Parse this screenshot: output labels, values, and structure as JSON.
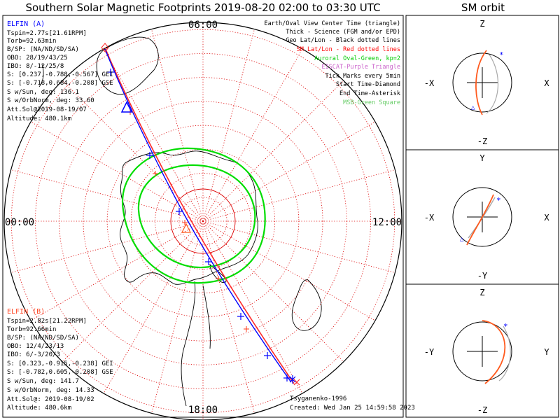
{
  "title": "Southern Solar Magnetic Footprints 2019-08-20 02:00 to 03:30 UTC",
  "orbit_title": "SM orbit",
  "clock_labels": {
    "top": "06:00",
    "left": "00:00",
    "right": "12:00",
    "bottom": "18:00"
  },
  "colors": {
    "elfin_a": "#0000ff",
    "elfin_b": "#ff0000",
    "orbit": "#ff5a1e",
    "oval": "#00dd00",
    "grid": "#dd0000"
  },
  "elfin_a": {
    "label": "ELFIN (A)",
    "lines": [
      "Tspin=2.77s[21.61RPM]",
      "Torb=92.63min",
      "B/SP: (NA/ND/SD/SA)",
      "OBO: 28/19/43/25",
      "IBO: 8/-12/25/8",
      "S: [0.237,-0.788,-0.567] GEI",
      "S: [-0.718,0.684,-0.208] GSE",
      "S w/Sun, deg: 136.1",
      "S w/OrbNorm, deg: 33.60",
      "Att.Sol@2019-08-19/07",
      "Altitude: 480.1km"
    ]
  },
  "elfin_b": {
    "label": "ELFIN (B)",
    "lines": [
      "Tspin=2.82s[21.22RPM]",
      "Torb=92.66min",
      "B/SP: (NA/ND/SD/SA)",
      "OBO: 12/4/23/13",
      "IBO: 6/-3/20/3",
      "S: [0.323,-0.915,-0.238] GEI",
      "S: [-0.782,0.605,-0.208] GSE",
      "S w/Sun, deg: 141.7",
      "S w/OrbNorm, deg: 14.33",
      "Att.Sol@: 2019-08-19/02",
      "Altitude: 480.6km"
    ]
  },
  "legend": [
    {
      "text": "Earth/Oval View Center Time (triangle)",
      "color": "#000000"
    },
    {
      "text": "Thick - Science (FGM and/or EPD)",
      "color": "#000000"
    },
    {
      "text": "Geo Lat/Lon - Black dotted lines",
      "color": "#000000"
    },
    {
      "text": "SM Lat/Lon - Red dotted lines",
      "color": "#ff0000"
    },
    {
      "text": "Auroral Oval-Green, kp=2",
      "color": "#00cc00"
    },
    {
      "text": "EISCAT-Purple Triangle",
      "color": "#cc66cc"
    },
    {
      "text": "Tick Marks every 5min",
      "color": "#000000"
    },
    {
      "text": "Start Time-Diamond",
      "color": "#000000"
    },
    {
      "text": "End Time-Asterisk",
      "color": "#000000"
    },
    {
      "text": "MSB-Green Square",
      "color": "#66cc66"
    }
  ],
  "credit": {
    "author": "Tsyganenko-1996",
    "created": "Created: Wed Jan 25 14:59:58 2023"
  },
  "orbit_panels": [
    {
      "top": "Z",
      "bottom": "-Z",
      "left": "-X",
      "right": "X"
    },
    {
      "top": "Y",
      "bottom": "-Y",
      "left": "-X",
      "right": "X"
    },
    {
      "top": "Z",
      "bottom": "-Z",
      "left": "-Y",
      "right": "Y"
    }
  ],
  "chart_data": {
    "type": "polar-map",
    "title": "Southern Solar Magnetic Footprints 2019-08-20 02:00 to 03:30 UTC",
    "series": [
      {
        "name": "ELFIN (A)",
        "time_range": [
          "02:00",
          "03:30"
        ]
      },
      {
        "name": "ELFIN (B)",
        "time_range": [
          "02:00",
          "03:30"
        ]
      }
    ]
  }
}
